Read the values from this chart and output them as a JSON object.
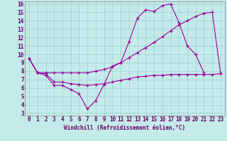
{
  "xlabel": "Windchill (Refroidissement éolien,°C)",
  "background_color": "#c5eaea",
  "grid_color": "#9dcfcf",
  "line_color": "#990099",
  "xlim_min": 0,
  "xlim_max": 23,
  "ylim_min": 3,
  "ylim_max": 16,
  "yticks": [
    3,
    4,
    5,
    6,
    7,
    8,
    9,
    10,
    11,
    12,
    13,
    14,
    15,
    16
  ],
  "xticks": [
    0,
    1,
    2,
    3,
    4,
    5,
    6,
    7,
    8,
    9,
    10,
    11,
    12,
    13,
    14,
    15,
    16,
    17,
    18,
    19,
    20,
    21,
    22,
    23
  ],
  "line1_x": [
    0,
    1,
    2,
    3,
    4,
    5,
    6,
    7,
    8,
    9,
    10,
    11,
    12,
    13,
    14,
    15,
    16,
    17,
    18,
    19,
    20,
    21
  ],
  "line1_y": [
    9.5,
    7.8,
    7.5,
    6.3,
    6.3,
    5.8,
    5.3,
    3.5,
    4.5,
    6.4,
    8.6,
    9.0,
    11.5,
    14.3,
    15.3,
    15.1,
    15.8,
    16.0,
    13.8,
    11.0,
    10.0,
    7.8
  ],
  "line2_x": [
    0,
    1,
    2,
    3,
    4,
    5,
    6,
    7,
    8,
    9,
    10,
    11,
    12,
    13,
    14,
    15,
    16,
    17,
    18,
    19,
    20,
    21,
    22,
    23
  ],
  "line2_y": [
    9.5,
    7.8,
    7.8,
    7.8,
    7.8,
    7.8,
    7.8,
    7.8,
    8.0,
    8.2,
    8.5,
    9.0,
    9.6,
    10.2,
    10.8,
    11.4,
    12.1,
    12.8,
    13.5,
    14.0,
    14.5,
    14.9,
    15.0,
    7.7
  ],
  "line3_x": [
    0,
    1,
    2,
    3,
    4,
    5,
    6,
    7,
    8,
    9,
    10,
    11,
    12,
    13,
    14,
    15,
    16,
    17,
    18,
    19,
    20,
    21,
    22,
    23
  ],
  "line3_y": [
    9.5,
    7.8,
    7.7,
    6.7,
    6.7,
    6.5,
    6.4,
    6.3,
    6.4,
    6.5,
    6.7,
    6.9,
    7.1,
    7.3,
    7.4,
    7.5,
    7.5,
    7.6,
    7.6,
    7.6,
    7.6,
    7.6,
    7.6,
    7.7
  ],
  "tick_fontsize": 5.5,
  "xlabel_fontsize": 5.5,
  "tick_color": "#660066",
  "label_color": "#660066"
}
